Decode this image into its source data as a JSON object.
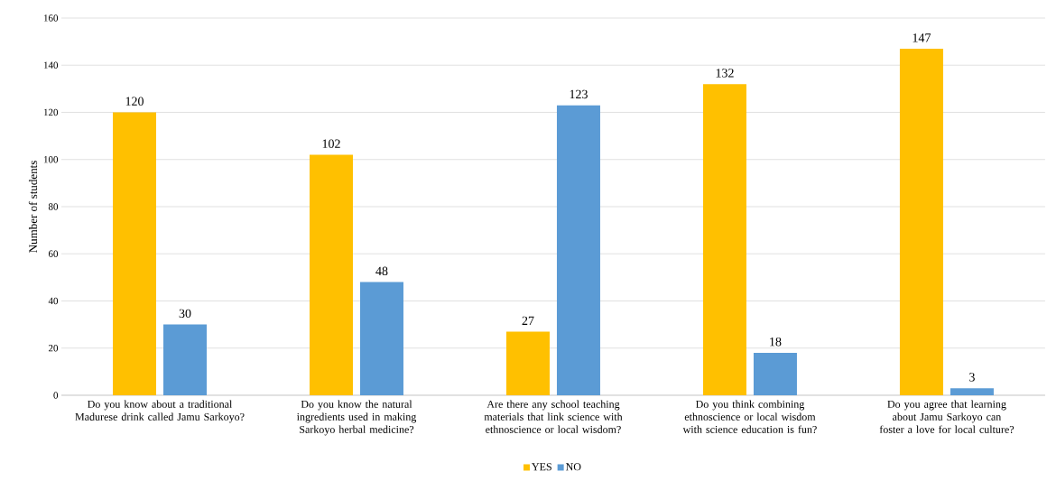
{
  "chart_data": {
    "type": "bar",
    "ylabel": "Number of students",
    "categories": [
      "Do you know about a traditional Madurese drink called Jamu Sarkoyo?",
      "Do you know the natural ingredients used in making Sarkoyo herbal medicine?",
      "Are there any school teaching materials that link science with ethnoscience or local wisdom?",
      "Do you think combining ethnoscience or local wisdom with science education is fun?",
      "Do you agree that learning about Jamu Sarkoyo can foster a love for local culture?"
    ],
    "series": [
      {
        "name": "YES",
        "color": "#ffc000",
        "values": [
          120,
          102,
          27,
          132,
          147
        ]
      },
      {
        "name": "NO",
        "color": "#5b9bd5",
        "values": [
          30,
          48,
          123,
          18,
          3
        ]
      }
    ],
    "ylim": [
      0,
      160
    ],
    "yticks": [
      0,
      20,
      40,
      60,
      80,
      100,
      120,
      140,
      160
    ],
    "grid": "y",
    "legend": "bottom",
    "data_labels": true
  }
}
